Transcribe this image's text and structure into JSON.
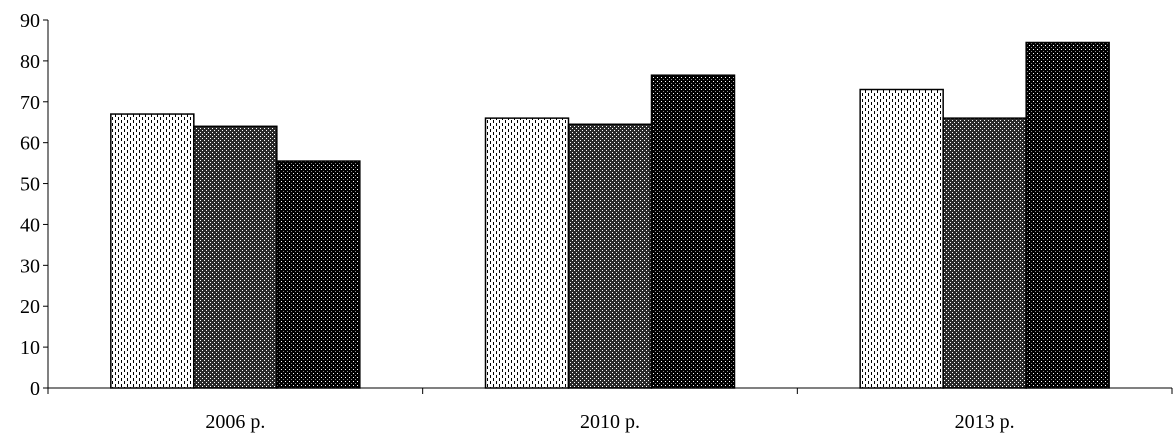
{
  "chart_data": {
    "type": "bar",
    "categories": [
      "2006 р.",
      "2010 р.",
      "2013 р."
    ],
    "series": [
      {
        "pattern": "dashed-light",
        "values": [
          67,
          66,
          73
        ]
      },
      {
        "pattern": "checker-dark",
        "values": [
          64,
          64.5,
          66
        ]
      },
      {
        "pattern": "dotted-black",
        "values": [
          55.5,
          76.5,
          84.5
        ]
      }
    ],
    "ylim": [
      0,
      90
    ],
    "yticks": [
      "0",
      "10",
      "20",
      "30",
      "40",
      "50",
      "60",
      "70",
      "80",
      "90"
    ],
    "grid": false,
    "legend": "none",
    "colors": {
      "axis": "#000000",
      "bar_stroke": "#000000",
      "background": "#ffffff"
    }
  }
}
